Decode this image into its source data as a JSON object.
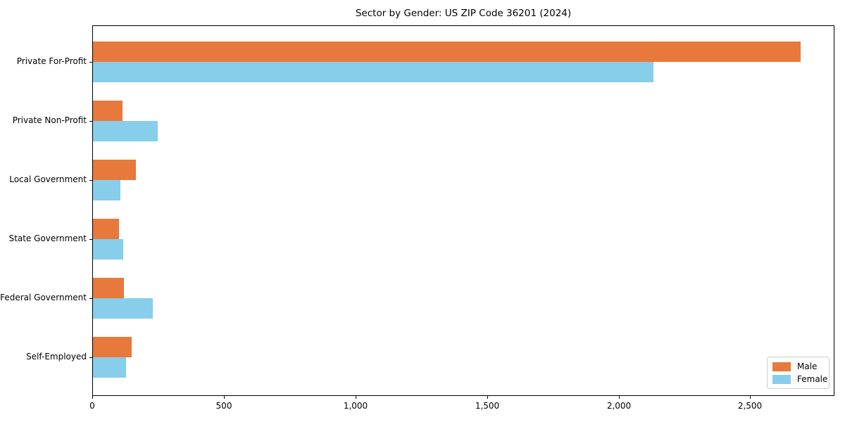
{
  "chart_data": {
    "type": "bar",
    "orientation": "horizontal",
    "title": "Sector by Gender: US ZIP Code 36201 (2024)",
    "categories": [
      "Private For-Profit",
      "Private Non-Profit",
      "Local Government",
      "State Government",
      "Federal Government",
      "Self-Employed"
    ],
    "series": [
      {
        "name": "Male",
        "color": "#e8793c",
        "values": [
          2690,
          112,
          164,
          100,
          118,
          146
        ]
      },
      {
        "name": "Female",
        "color": "#87ceeb",
        "values": [
          2130,
          246,
          105,
          116,
          228,
          125
        ]
      }
    ],
    "xlabel": "",
    "ylabel": "",
    "xlim": [
      0,
      2820
    ],
    "x_ticks": [
      0,
      500,
      1000,
      1500,
      2000,
      2500
    ],
    "x_tick_labels": [
      "0",
      "500",
      "1,000",
      "1,500",
      "2,000",
      "2,500"
    ],
    "grid": false,
    "legend": {
      "position": "lower right",
      "entries": [
        "Male",
        "Female"
      ]
    }
  }
}
